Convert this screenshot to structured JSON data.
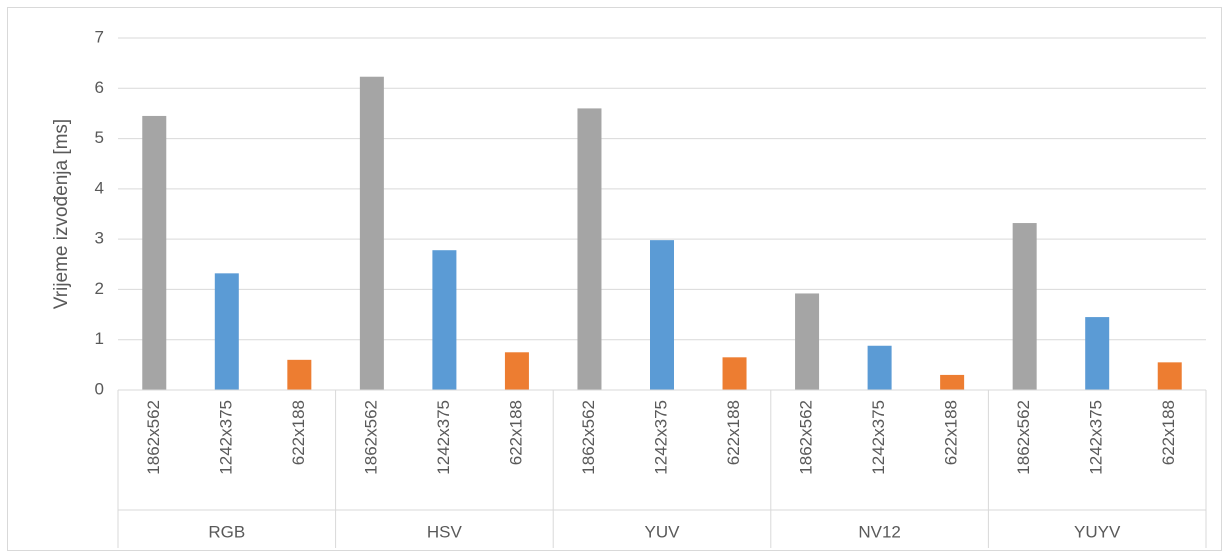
{
  "chart_data": {
    "type": "bar",
    "y_label": "Vrijeme izvođenja [ms]",
    "groups": [
      "RGB",
      "HSV",
      "YUV",
      "NV12",
      "YUYV"
    ],
    "categories": [
      "1862x562",
      "1242x375",
      "622x188",
      "1862x562",
      "1242x375",
      "622x188",
      "1862x562",
      "1242x375",
      "622x188",
      "1862x562",
      "1242x375",
      "622x188",
      "1862x562",
      "1242x375",
      "622x188"
    ],
    "values": [
      5.45,
      2.32,
      0.6,
      6.23,
      2.78,
      0.75,
      5.6,
      2.98,
      0.65,
      1.92,
      0.88,
      0.3,
      3.32,
      1.45,
      0.55
    ],
    "colors": [
      "#a5a5a5",
      "#5b9bd5",
      "#ed7d31",
      "#a5a5a5",
      "#5b9bd5",
      "#ed7d31",
      "#a5a5a5",
      "#5b9bd5",
      "#ed7d31",
      "#a5a5a5",
      "#5b9bd5",
      "#ed7d31",
      "#a5a5a5",
      "#5b9bd5",
      "#ed7d31"
    ],
    "ylim": [
      0,
      7
    ],
    "yticks": [
      0,
      1,
      2,
      3,
      4,
      5,
      6,
      7
    ],
    "grid": true
  }
}
